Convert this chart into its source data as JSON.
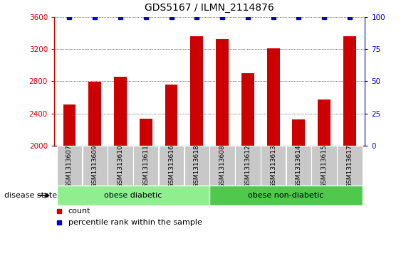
{
  "title": "GDS5167 / ILMN_2114876",
  "samples": [
    "GSM1313607",
    "GSM1313609",
    "GSM1313610",
    "GSM1313611",
    "GSM1313616",
    "GSM1313618",
    "GSM1313608",
    "GSM1313612",
    "GSM1313613",
    "GSM1313614",
    "GSM1313615",
    "GSM1313617"
  ],
  "counts": [
    2510,
    2790,
    2860,
    2340,
    2760,
    3360,
    3320,
    2900,
    3210,
    2330,
    2570,
    3360
  ],
  "percentile_ranks": [
    100,
    100,
    100,
    100,
    100,
    100,
    100,
    100,
    100,
    100,
    100,
    100
  ],
  "groups": [
    {
      "label": "obese diabetic",
      "start": 0,
      "end": 6,
      "color": "#90EE90"
    },
    {
      "label": "obese non-diabetic",
      "start": 6,
      "end": 12,
      "color": "#4EC94E"
    }
  ],
  "bar_color": "#CC0000",
  "percentile_color": "#0000CC",
  "ylim_left": [
    2000,
    3600
  ],
  "ylim_right": [
    0,
    100
  ],
  "yticks_left": [
    2000,
    2400,
    2800,
    3200,
    3600
  ],
  "yticks_right": [
    0,
    25,
    50,
    75,
    100
  ],
  "bar_width": 0.5,
  "disease_state_label": "disease state",
  "legend_count_label": "count",
  "legend_percentile_label": "percentile rank within the sample",
  "sample_box_color": "#C8C8C8",
  "spine_color": "#000000"
}
